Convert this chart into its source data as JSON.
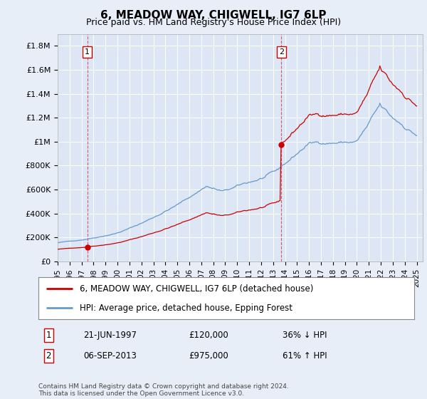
{
  "title": "6, MEADOW WAY, CHIGWELL, IG7 6LP",
  "subtitle": "Price paid vs. HM Land Registry's House Price Index (HPI)",
  "background_color": "#e8eef8",
  "plot_bg_color": "#dce6f5",
  "ylim": [
    0,
    1900000
  ],
  "yticks": [
    0,
    200000,
    400000,
    600000,
    800000,
    1000000,
    1200000,
    1400000,
    1600000,
    1800000
  ],
  "ytick_labels": [
    "£0",
    "£200K",
    "£400K",
    "£600K",
    "£800K",
    "£1M",
    "£1.2M",
    "£1.4M",
    "£1.6M",
    "£1.8M"
  ],
  "xlim_start": 1995.0,
  "xlim_end": 2025.5,
  "xtick_years": [
    1995,
    1996,
    1997,
    1998,
    1999,
    2000,
    2001,
    2002,
    2003,
    2004,
    2005,
    2006,
    2007,
    2008,
    2009,
    2010,
    2011,
    2012,
    2013,
    2014,
    2015,
    2016,
    2017,
    2018,
    2019,
    2020,
    2021,
    2022,
    2023,
    2024,
    2025
  ],
  "sale1_x": 1997.47,
  "sale1_y": 120000,
  "sale1_label": "1",
  "sale1_date": "21-JUN-1997",
  "sale1_price": "£120,000",
  "sale1_hpi": "36% ↓ HPI",
  "sale2_x": 2013.68,
  "sale2_y": 975000,
  "sale2_label": "2",
  "sale2_date": "06-SEP-2013",
  "sale2_price": "£975,000",
  "sale2_hpi": "61% ↑ HPI",
  "line1_color": "#cc0000",
  "line2_color": "#6699cc",
  "marker_color": "#cc0000",
  "legend_line1": "6, MEADOW WAY, CHIGWELL, IG7 6LP (detached house)",
  "legend_line2": "HPI: Average price, detached house, Epping Forest",
  "footer": "Contains HM Land Registry data © Crown copyright and database right 2024.\nThis data is licensed under the Open Government Licence v3.0."
}
